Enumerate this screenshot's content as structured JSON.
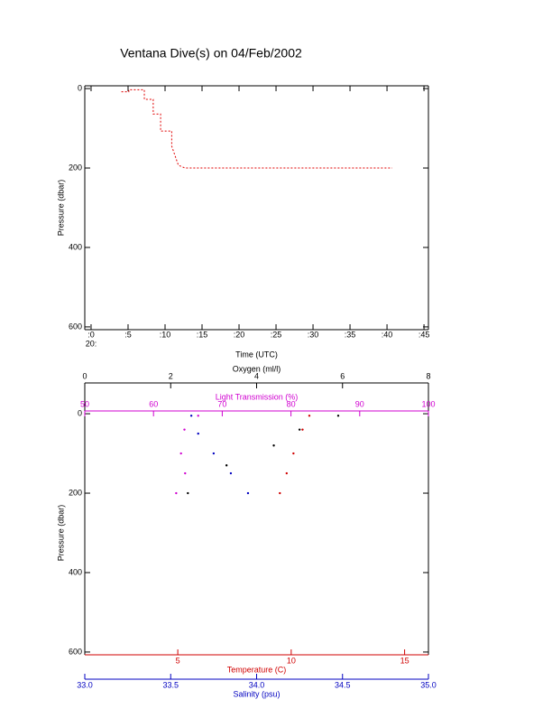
{
  "chart_data": [
    {
      "type": "line",
      "title": "Ventana Dive(s) on 04/Feb/2002",
      "xlabel": "Time (UTC)",
      "x_hour_label": "20:",
      "ylabel": "Pressure (dbar)",
      "xlim": [
        -0.85,
        45.6
      ],
      "xticks": [
        {
          "value": 0,
          "label": ":0"
        },
        {
          "value": 5,
          "label": ":5"
        },
        {
          "value": 10,
          "label": ":10"
        },
        {
          "value": 15,
          "label": ":15"
        },
        {
          "value": 20,
          "label": ":20"
        },
        {
          "value": 25,
          "label": ":25"
        },
        {
          "value": 30,
          "label": ":30"
        },
        {
          "value": 35,
          "label": ":35"
        },
        {
          "value": 40,
          "label": ":40"
        },
        {
          "value": 45,
          "label": ":45"
        }
      ],
      "ylim": [
        -7,
        607
      ],
      "y_inverted": true,
      "yticks": [
        0,
        200,
        400,
        600
      ],
      "series": [
        {
          "color": "#e00000",
          "x": [
            4.1,
            5.1,
            5.1,
            7.2,
            7.2,
            8.4,
            8.4,
            9.4,
            9.4,
            10.9,
            10.9,
            11.8,
            12.7,
            40.7
          ],
          "values": [
            8,
            8,
            3,
            3,
            27,
            27,
            64,
            64,
            107,
            107,
            145,
            193,
            200,
            200
          ]
        }
      ]
    },
    {
      "type": "scatter",
      "ylabel": "Pressure (dbar)",
      "ylim": [
        -7,
        607
      ],
      "y_inverted": true,
      "yticks": [
        0,
        200,
        400,
        600
      ],
      "x_axes": [
        {
          "label": "Oxygen (ml/l)",
          "color": "#000000",
          "position": "top",
          "lim": [
            0,
            8
          ],
          "ticks": [
            0,
            2,
            4,
            6,
            8
          ]
        },
        {
          "label": "Light Transmission (%)",
          "color": "#d000d0",
          "position": "top",
          "lim": [
            50,
            100
          ],
          "ticks": [
            50,
            60,
            70,
            80,
            90,
            100
          ]
        },
        {
          "label": "Temperature (C)",
          "color": "#d00000",
          "position": "bottom",
          "lim": [
            0.9,
            16.05
          ],
          "ticks": [
            5,
            10,
            15
          ]
        },
        {
          "label": "Salinity (psu)",
          "color": "#0000c0",
          "position": "bottom",
          "lim": [
            33,
            35
          ],
          "ticks": [
            {
              "value": 33,
              "label": "33.0"
            },
            {
              "value": 33.5,
              "label": "33.5"
            },
            {
              "value": 34,
              "label": "34.0"
            },
            {
              "value": 34.5,
              "label": "34.5"
            },
            {
              "value": 35,
              "label": "35.0"
            }
          ]
        }
      ],
      "series": [
        {
          "axis": 0,
          "color": "#000000",
          "x": [
            5.9,
            5.0,
            4.4,
            3.3,
            2.4
          ],
          "values": [
            5,
            40,
            80,
            130,
            200
          ]
        },
        {
          "axis": 1,
          "color": "#d000d0",
          "x": [
            66.5,
            64.5,
            64.0,
            64.6,
            63.3
          ],
          "values": [
            5,
            40,
            100,
            150,
            200
          ]
        },
        {
          "axis": 2,
          "color": "#d00000",
          "x": [
            10.8,
            10.5,
            10.1,
            9.8,
            9.5
          ],
          "values": [
            5,
            40,
            100,
            150,
            200
          ]
        },
        {
          "axis": 3,
          "color": "#0000c0",
          "x": [
            33.62,
            33.66,
            33.75,
            33.85,
            33.95
          ],
          "values": [
            5,
            50,
            100,
            150,
            200
          ]
        }
      ]
    }
  ]
}
